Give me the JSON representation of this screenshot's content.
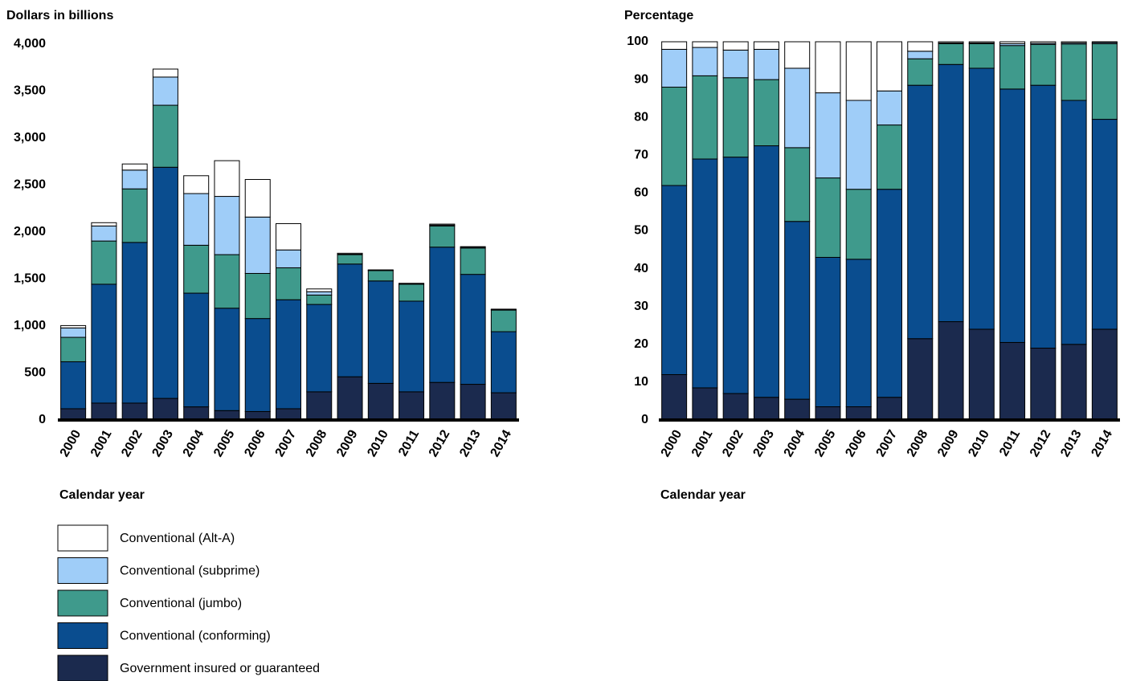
{
  "chart_data": [
    {
      "type": "stacked_bar",
      "ylabel": "Dollars in billions",
      "xlabel": "Calendar year",
      "categories": [
        "2000",
        "2001",
        "2002",
        "2003",
        "2004",
        "2005",
        "2006",
        "2007",
        "2008",
        "2009",
        "2010",
        "2011",
        "2012",
        "2013",
        "2014"
      ],
      "ylim": [
        0,
        4000
      ],
      "yticks": [
        0,
        500,
        {
          "value": 1000,
          "label": "1,000"
        },
        {
          "value": 1500,
          "label": "1,500"
        },
        {
          "value": 2000,
          "label": "2,000"
        },
        {
          "value": 2500,
          "label": "2,500"
        },
        {
          "value": 3000,
          "label": "3,000"
        },
        {
          "value": 3500,
          "label": "3,500"
        },
        {
          "value": 4000,
          "label": "4,000"
        }
      ],
      "series": [
        {
          "name": "Government insured or guaranteed",
          "color": "#1b2a4e",
          "values": [
            120,
            180,
            180,
            230,
            140,
            100,
            90,
            120,
            300,
            460,
            390,
            300,
            400,
            380,
            290
          ]
        },
        {
          "name": "Conventional (conforming)",
          "color": "#0a4d8f",
          "values": [
            500,
            1265,
            1710,
            2460,
            1210,
            1090,
            990,
            1160,
            930,
            1200,
            1090,
            965,
            1440,
            1170,
            650
          ]
        },
        {
          "name": "Conventional (jumbo)",
          "color": "#3f9a8c",
          "values": [
            260,
            460,
            570,
            660,
            510,
            570,
            480,
            340,
            100,
            100,
            110,
            180,
            225,
            280,
            230
          ]
        },
        {
          "name": "Conventional (subprime)",
          "color": "#9fcdf8",
          "values": [
            100,
            160,
            200,
            300,
            550,
            620,
            600,
            190,
            35,
            5,
            3,
            5,
            10,
            10,
            5
          ]
        },
        {
          "name": "Conventional (Alt-A)",
          "color": "#ffffff",
          "values": [
            25,
            35,
            65,
            85,
            190,
            380,
            400,
            280,
            30,
            10,
            5,
            5,
            10,
            5,
            5
          ]
        }
      ]
    },
    {
      "type": "stacked_bar",
      "ylabel": "Percentage",
      "xlabel": "Calendar year",
      "categories": [
        "2000",
        "2001",
        "2002",
        "2003",
        "2004",
        "2005",
        "2006",
        "2007",
        "2008",
        "2009",
        "2010",
        "2011",
        "2012",
        "2013",
        "2014"
      ],
      "ylim": [
        0,
        100
      ],
      "yticks": [
        0,
        10,
        20,
        30,
        40,
        50,
        60,
        70,
        80,
        90,
        100
      ],
      "series": [
        {
          "color": "#1b2a4e",
          "values": [
            12,
            8.5,
            7,
            6,
            5.5,
            3.5,
            3.5,
            6,
            21.5,
            26,
            24,
            20.5,
            19,
            20,
            24
          ]
        },
        {
          "color": "#0a4d8f",
          "values": [
            50,
            60.5,
            62.5,
            66.5,
            47,
            39.5,
            39,
            55,
            67,
            68,
            69,
            67,
            69.5,
            64.5,
            55.5
          ]
        },
        {
          "color": "#3f9a8c",
          "values": [
            26,
            22,
            21,
            17.5,
            19.5,
            21,
            18.5,
            17,
            7,
            5.5,
            6.5,
            11.5,
            10.8,
            14.9,
            20
          ]
        },
        {
          "color": "#9fcdf8",
          "values": [
            10,
            7.5,
            7.3,
            8,
            21,
            22.5,
            23.5,
            9,
            2,
            0.2,
            0.2,
            0.5,
            0.3,
            0.3,
            0.3
          ]
        },
        {
          "color": "#ffffff",
          "values": [
            2,
            1.5,
            2.2,
            2,
            7,
            13.5,
            15.5,
            13,
            2.5,
            0.3,
            0.3,
            0.5,
            0.4,
            0.3,
            0.2
          ]
        }
      ]
    }
  ]
}
